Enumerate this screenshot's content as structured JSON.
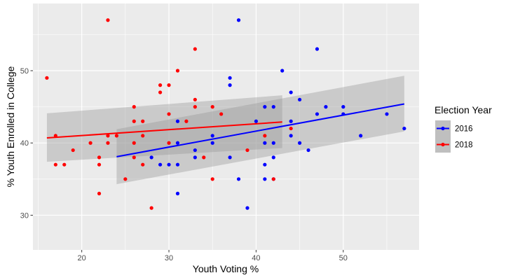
{
  "chart_data": {
    "type": "scatter",
    "title": "",
    "xlabel": "Youth Voting %",
    "ylabel": "% Youth Enrolled in College",
    "xlim": [
      14.4,
      58.7
    ],
    "ylim": [
      25.2,
      59.3
    ],
    "xticks": [
      20,
      30,
      40,
      50
    ],
    "yticks": [
      30,
      40,
      50
    ],
    "grid": true,
    "legend": {
      "title": "Election Year",
      "position": "right"
    },
    "series": [
      {
        "name": "2016",
        "color": "#0000ff",
        "points": [
          [
            38,
            57
          ],
          [
            47,
            53
          ],
          [
            43,
            50
          ],
          [
            37,
            49
          ],
          [
            37,
            48
          ],
          [
            44,
            47
          ],
          [
            45,
            46
          ],
          [
            41,
            45
          ],
          [
            42,
            45
          ],
          [
            48,
            45
          ],
          [
            50,
            45
          ],
          [
            47,
            44
          ],
          [
            50,
            44
          ],
          [
            55,
            44
          ],
          [
            40,
            43
          ],
          [
            44,
            43
          ],
          [
            31,
            43
          ],
          [
            57,
            42
          ],
          [
            52,
            41
          ],
          [
            35,
            41
          ],
          [
            44,
            41
          ],
          [
            31,
            40
          ],
          [
            35,
            40
          ],
          [
            41,
            40
          ],
          [
            42,
            40
          ],
          [
            45,
            40
          ],
          [
            33,
            39
          ],
          [
            46,
            39
          ],
          [
            28,
            38
          ],
          [
            33,
            38
          ],
          [
            37,
            38
          ],
          [
            42,
            38
          ],
          [
            29,
            37
          ],
          [
            30,
            37
          ],
          [
            31,
            37
          ],
          [
            41,
            37
          ],
          [
            38,
            35
          ],
          [
            41,
            35
          ],
          [
            42,
            35
          ],
          [
            31,
            33
          ],
          [
            39,
            31
          ]
        ],
        "fit": {
          "x": [
            24,
            57
          ],
          "y": [
            38.1,
            45.4
          ],
          "ci_lower": [
            34.3,
            41.6
          ],
          "ci_upper": [
            41.9,
            49.3
          ]
        }
      },
      {
        "name": "2018",
        "color": "#ff0000",
        "points": [
          [
            23,
            57
          ],
          [
            33,
            53
          ],
          [
            31,
            50
          ],
          [
            16,
            49
          ],
          [
            29,
            48
          ],
          [
            30,
            48
          ],
          [
            29,
            47
          ],
          [
            33,
            46
          ],
          [
            26,
            45
          ],
          [
            33,
            45
          ],
          [
            35,
            45
          ],
          [
            36,
            44
          ],
          [
            30,
            44
          ],
          [
            26,
            43
          ],
          [
            27,
            43
          ],
          [
            32,
            43
          ],
          [
            44,
            42
          ],
          [
            17,
            41
          ],
          [
            23,
            41
          ],
          [
            24,
            41
          ],
          [
            27,
            41
          ],
          [
            41,
            41
          ],
          [
            21,
            40
          ],
          [
            23,
            40
          ],
          [
            26,
            40
          ],
          [
            30,
            40
          ],
          [
            19,
            39
          ],
          [
            39,
            39
          ],
          [
            22,
            38
          ],
          [
            26,
            38
          ],
          [
            34,
            38
          ],
          [
            17,
            37
          ],
          [
            18,
            37
          ],
          [
            22,
            37
          ],
          [
            27,
            37
          ],
          [
            25,
            35
          ],
          [
            35,
            35
          ],
          [
            42,
            35
          ],
          [
            22,
            33
          ],
          [
            28,
            31
          ]
        ],
        "fit": {
          "x": [
            16,
            43
          ],
          "y": [
            40.7,
            42.9
          ],
          "ci_lower": [
            37.4,
            39.3
          ],
          "ci_upper": [
            44.1,
            46.6
          ]
        }
      }
    ]
  }
}
